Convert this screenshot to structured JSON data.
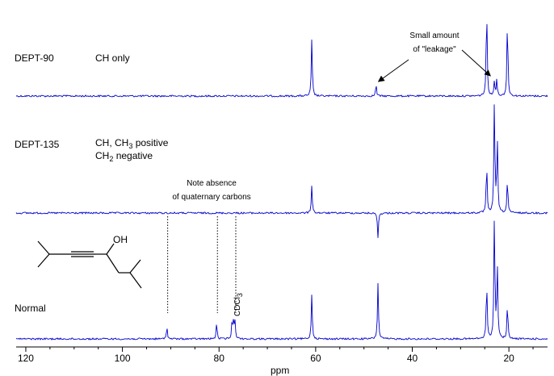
{
  "chart_data": {
    "type": "line",
    "xlabel": "ppm",
    "xlim": [
      122,
      12
    ],
    "x_reversed": true,
    "xticks": [
      120,
      100,
      80,
      60,
      40,
      20
    ],
    "spectra": [
      {
        "name": "DEPT-90",
        "description": "CH only",
        "peaks": [
          {
            "ppm": 60.8,
            "intensity": 0.5
          },
          {
            "ppm": 47.5,
            "intensity": 0.1
          },
          {
            "ppm": 24.6,
            "intensity": 0.8
          },
          {
            "ppm": 23.0,
            "intensity": 0.14
          },
          {
            "ppm": 22.5,
            "intensity": 0.14
          },
          {
            "ppm": 20.3,
            "intensity": 0.68
          }
        ]
      },
      {
        "name": "DEPT-135",
        "description_line1": "CH, CH",
        "description_line1_sub": "3",
        "description_line1_end": " positive",
        "description_line2": "CH",
        "description_line2_sub": "2",
        "description_line2_end": " negative",
        "peaks": [
          {
            "ppm": 60.8,
            "intensity": 0.25
          },
          {
            "ppm": 47.1,
            "intensity": -0.22
          },
          {
            "ppm": 24.6,
            "intensity": 0.43
          },
          {
            "ppm": 23.0,
            "intensity": 1.0
          },
          {
            "ppm": 22.4,
            "intensity": 0.65
          },
          {
            "ppm": 20.3,
            "intensity": 0.3
          }
        ]
      },
      {
        "name": "Normal",
        "peaks": [
          {
            "ppm": 90.8,
            "intensity": 0.11
          },
          {
            "ppm": 80.5,
            "intensity": 0.14
          },
          {
            "ppm": 77.3,
            "intensity": 0.15
          },
          {
            "ppm": 77.0,
            "intensity": 0.15
          },
          {
            "ppm": 76.7,
            "intensity": 0.15
          },
          {
            "ppm": 60.8,
            "intensity": 0.4
          },
          {
            "ppm": 47.1,
            "intensity": 0.5
          },
          {
            "ppm": 24.6,
            "intensity": 0.5
          },
          {
            "ppm": 23.0,
            "intensity": 1.1
          },
          {
            "ppm": 22.4,
            "intensity": 0.66
          },
          {
            "ppm": 20.3,
            "intensity": 0.3
          }
        ]
      }
    ],
    "annotations": {
      "leakage_line1": "Small amount",
      "leakage_line2": "of \"leakage\"",
      "absence_line1": "Note absence",
      "absence_line2": "of quaternary carbons",
      "solvent": "CDCl",
      "solvent_sub": "3",
      "molecule_group": "OH"
    },
    "quaternary_marker_ppm": [
      90.8,
      80.5,
      76.7
    ],
    "leakage_arrow_ppm": [
      47.5,
      23.0
    ]
  },
  "colors": {
    "spectrum": "#0000cc",
    "axis": "#000000",
    "annotation": "#000000"
  }
}
